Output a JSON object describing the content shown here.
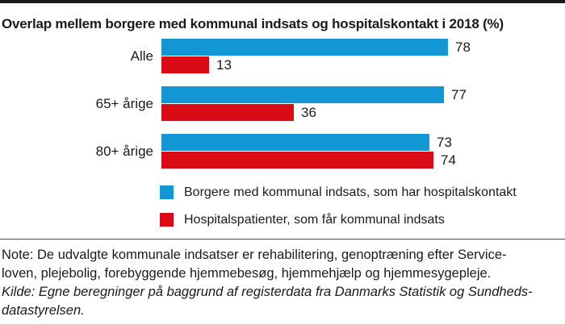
{
  "title": "Overlap mellem borgere med kommunal indsats og hospitalskontakt i 2018 (%)",
  "chart_data": {
    "type": "bar",
    "orientation": "horizontal",
    "title": "Overlap mellem borgere med kommunal indsats og hospitalskontakt i 2018 (%)",
    "categories": [
      "Alle",
      "65+ årige",
      "80+ årige"
    ],
    "series": [
      {
        "name": "Borgere med kommunal indsats, som har hospitalskontakt",
        "color": "#1297d4",
        "values": [
          78,
          77,
          73
        ]
      },
      {
        "name": "Hospitalspatienter, som får kommunal indsats",
        "color": "#db0b16",
        "values": [
          13,
          36,
          74
        ]
      }
    ],
    "xlim": [
      0,
      100
    ],
    "value_labels": true,
    "grid": false,
    "legend_position": "bottom"
  },
  "note": {
    "lines": [
      "Note: De udvalgte kommunale indsatser er rehabilitering, genoptræning efter Service-",
      "loven, plejebolig, forebyggende hjemmebesøg, hjemmehjælp og hjemmesygepleje."
    ]
  },
  "source": {
    "lines": [
      "Kilde: Egne beregninger på baggrund af registerdata fra Danmarks Statistik og Sundheds-",
      "datastyrelsen."
    ]
  },
  "colors": {
    "blue": "#1297d4",
    "red": "#db0b16",
    "text": "#1a1a1a",
    "top_rule": "#1a1a1a",
    "divider": "#4d4d4d"
  }
}
